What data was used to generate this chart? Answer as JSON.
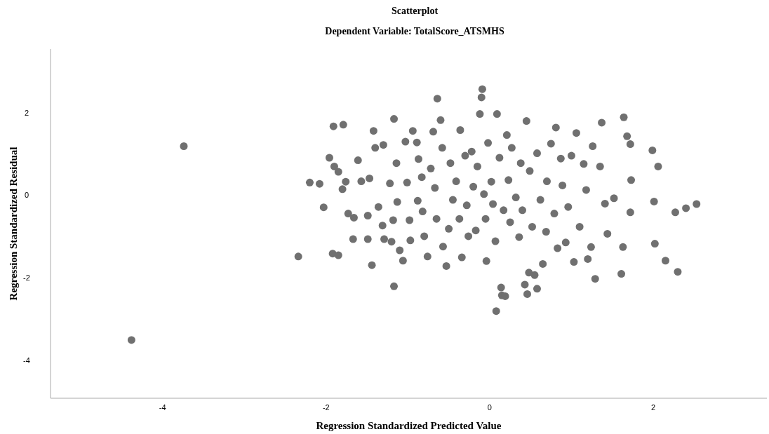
{
  "chart_data": {
    "type": "scatter",
    "title": "Scatterplot",
    "subtitle": "Dependent Variable: TotalScore_ATSMHS",
    "xlabel": "Regression Standardized Predicted Value",
    "ylabel": "Regression Standardized Residual",
    "xlim": [
      -5.37,
      3.39
    ],
    "ylim": [
      -4.91,
      3.54
    ],
    "xticks": [
      -4,
      -2,
      0,
      2
    ],
    "yticks": [
      -4,
      -2,
      0,
      2
    ],
    "grid": false,
    "marker": "circle",
    "series": [
      {
        "color": "#707070",
        "x": [
          -4.38,
          -3.74,
          -2.34,
          -2.2,
          -2.08,
          -2.03,
          -1.96,
          -1.91,
          -1.79,
          -1.9,
          -1.85,
          -1.92,
          -1.85,
          -1.8,
          -1.76,
          -1.73,
          -1.66,
          -1.61,
          -1.67,
          -1.57,
          -1.49,
          -1.47,
          -1.49,
          -1.44,
          -1.42,
          -1.4,
          -1.3,
          -1.36,
          -1.31,
          -1.29,
          -1.22,
          -1.2,
          -1.18,
          -1.17,
          -1.17,
          -1.14,
          -1.13,
          -1.1,
          -1.06,
          -1.03,
          -1.01,
          -0.98,
          -0.97,
          -0.94,
          -0.89,
          -0.87,
          -0.88,
          -0.83,
          -0.82,
          -0.8,
          -0.76,
          -0.72,
          -0.69,
          -0.67,
          -0.65,
          -0.64,
          -0.6,
          -0.58,
          -0.57,
          -0.53,
          -0.5,
          -0.48,
          -0.45,
          -0.41,
          -0.37,
          -0.36,
          -0.34,
          -0.3,
          -0.28,
          -0.26,
          -0.22,
          -0.2,
          -0.17,
          -0.15,
          -0.12,
          -0.1,
          -0.09,
          -0.07,
          -0.05,
          -0.04,
          -0.02,
          0.02,
          0.04,
          0.07,
          0.08,
          0.09,
          0.12,
          0.14,
          0.15,
          0.17,
          0.19,
          0.21,
          0.23,
          0.25,
          0.27,
          0.32,
          0.36,
          0.38,
          0.4,
          0.43,
          0.45,
          0.46,
          0.48,
          0.49,
          0.52,
          0.55,
          0.58,
          0.58,
          0.62,
          0.65,
          0.69,
          0.7,
          0.75,
          0.79,
          0.81,
          0.83,
          0.87,
          0.89,
          0.93,
          0.96,
          1.0,
          1.03,
          1.06,
          1.1,
          1.15,
          1.18,
          1.2,
          1.24,
          1.26,
          1.29,
          1.35,
          1.37,
          1.41,
          1.44,
          1.52,
          1.61,
          1.63,
          1.64,
          1.68,
          1.72,
          1.73,
          1.72,
          1.99,
          2.01,
          2.06,
          2.02,
          2.15,
          2.27,
          2.3,
          2.4,
          2.53
        ],
        "values": [
          -3.5,
          1.19,
          -1.48,
          0.31,
          0.28,
          -0.29,
          0.91,
          1.67,
          1.71,
          0.7,
          0.57,
          -1.41,
          -1.45,
          0.15,
          0.33,
          -0.44,
          -0.54,
          0.85,
          -1.06,
          0.34,
          -0.49,
          0.41,
          -1.06,
          -1.69,
          1.56,
          1.15,
          1.22,
          -0.28,
          -0.73,
          -1.06,
          0.29,
          -1.12,
          -0.6,
          1.85,
          -2.2,
          0.78,
          -0.16,
          -1.33,
          -1.58,
          1.3,
          0.31,
          -0.6,
          -1.09,
          1.56,
          1.28,
          0.88,
          -0.13,
          0.44,
          -0.39,
          -0.99,
          -1.48,
          0.65,
          1.54,
          0.18,
          -0.57,
          2.34,
          1.82,
          1.15,
          -1.24,
          -1.71,
          -0.81,
          0.78,
          -0.11,
          0.34,
          -0.57,
          1.58,
          -1.5,
          0.96,
          -0.24,
          -0.99,
          1.06,
          0.21,
          -0.85,
          0.7,
          1.97,
          2.37,
          2.57,
          0.03,
          -0.57,
          -1.59,
          1.27,
          0.33,
          -0.21,
          -1.11,
          -2.8,
          1.97,
          0.91,
          -2.23,
          -2.42,
          -0.36,
          -2.44,
          1.46,
          0.37,
          -0.65,
          1.15,
          -0.05,
          -1.01,
          0.78,
          -0.36,
          -2.16,
          1.8,
          -2.39,
          -1.87,
          0.59,
          -0.76,
          -1.93,
          1.02,
          -2.26,
          -0.11,
          -1.66,
          -0.88,
          0.34,
          1.25,
          -0.44,
          1.64,
          -1.28,
          0.89,
          0.24,
          -1.14,
          -0.28,
          0.96,
          -1.61,
          1.51,
          -0.76,
          0.76,
          0.13,
          -1.54,
          -1.25,
          1.19,
          -2.02,
          0.7,
          1.76,
          -0.2,
          -0.93,
          -0.07,
          -1.9,
          -1.25,
          1.89,
          1.43,
          1.24,
          0.37,
          -0.41,
          1.09,
          -0.15,
          0.7,
          -1.17,
          -1.58,
          -0.41,
          -1.85,
          -0.31,
          -0.21
        ]
      }
    ]
  }
}
